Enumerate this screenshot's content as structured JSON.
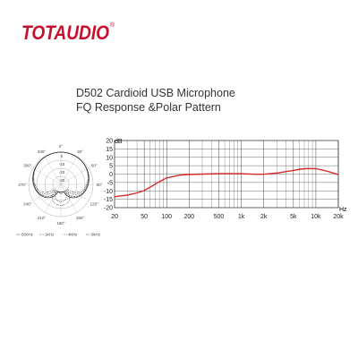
{
  "brand": {
    "logo_text": "TOTAUDIO",
    "logo_mark": "®",
    "color": "#c8102e"
  },
  "product": {
    "title": "D502 Cardioid USB Microphone",
    "subtitle": "FQ Response &Polar Pattern"
  },
  "polar_pattern": {
    "angle_labels": [
      "0°",
      "30°",
      "60°",
      "90°",
      "120°",
      "150°",
      "180°",
      "210°",
      "240°",
      "270°",
      "300°",
      "330°"
    ],
    "ring_labels": [
      "0",
      "-10",
      "-20",
      "-30"
    ],
    "legend": [
      "500Hz",
      "1kHz",
      "4kHz",
      "8kHz"
    ]
  },
  "chart_data": {
    "type": "line",
    "title": "",
    "xlabel": "Hz",
    "ylabel": "dB",
    "x_scale": "log",
    "xlim": [
      20,
      20000
    ],
    "ylim": [
      -20,
      20
    ],
    "yticks": [
      "20",
      "15",
      "10",
      "5",
      "0",
      "-5",
      "-10",
      "-15",
      "-20"
    ],
    "xticks": [
      "20",
      "50",
      "100",
      "200",
      "500",
      "1k",
      "2k",
      "5k",
      "10k",
      "20k"
    ],
    "grid": true,
    "series": [
      {
        "color": "#d42a2a",
        "x": [
          20,
          30,
          40,
          50,
          60,
          80,
          100,
          150,
          200,
          300,
          500,
          700,
          1000,
          1500,
          2000,
          3000,
          4000,
          5000,
          6000,
          7000,
          8000,
          10000,
          12000,
          15000,
          20000
        ],
        "y": [
          -13.5,
          -12.5,
          -11.2,
          -9.8,
          -7.8,
          -4.5,
          -2.3,
          -0.6,
          -0.2,
          0,
          0.2,
          0.3,
          0.2,
          -0.1,
          -0.1,
          0.6,
          1.5,
          2.2,
          2.8,
          3.2,
          3.3,
          3.2,
          2.5,
          1.4,
          -0.3
        ]
      }
    ]
  }
}
